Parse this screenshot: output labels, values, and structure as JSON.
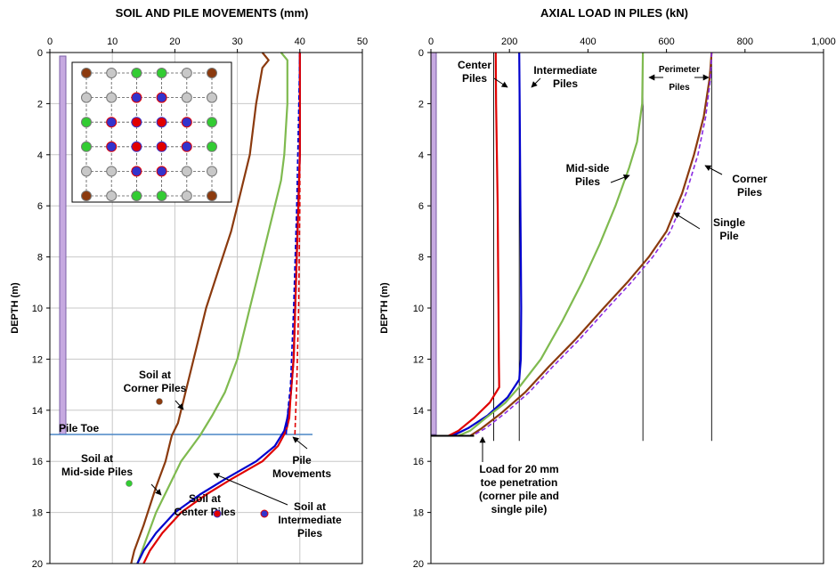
{
  "chart_data": [
    {
      "type": "line",
      "title": "SOIL AND PILE MOVEMENTS (mm)",
      "xlabel": "",
      "ylabel": "DEPTH (m)",
      "xlim": [
        0,
        50
      ],
      "ylim": [
        0,
        20
      ],
      "y_reversed": true,
      "x_axis_position": "top",
      "grid": true,
      "xticks": [
        "0",
        "10",
        "20",
        "30",
        "40",
        "50"
      ],
      "yticks": [
        "0",
        "2",
        "4",
        "6",
        "8",
        "10",
        "12",
        "14",
        "16",
        "18",
        "20"
      ],
      "series": [
        {
          "key": "soil-corner",
          "color": "#8B3A0E",
          "dashed": false,
          "points": [
            [
              34,
              0
            ],
            [
              35,
              0.3
            ],
            [
              34,
              0.6
            ],
            [
              33,
              2
            ],
            [
              32,
              4
            ],
            [
              31,
              5
            ],
            [
              30,
              6
            ],
            [
              29,
              7
            ],
            [
              27,
              8.5
            ],
            [
              25,
              10
            ],
            [
              23,
              12
            ],
            [
              21.5,
              13.5
            ],
            [
              20.5,
              14.5
            ],
            [
              19.5,
              15
            ],
            [
              18.5,
              16
            ],
            [
              17,
              17
            ],
            [
              15,
              18.5
            ],
            [
              13.5,
              19.5
            ],
            [
              13,
              20
            ]
          ]
        },
        {
          "key": "soil-midside",
          "color": "#7FBA4F",
          "dashed": false,
          "points": [
            [
              37,
              0
            ],
            [
              38,
              0.3
            ],
            [
              38,
              2
            ],
            [
              37.5,
              4
            ],
            [
              37,
              5
            ],
            [
              36,
              6
            ],
            [
              35,
              7
            ],
            [
              34,
              8
            ],
            [
              33,
              9
            ],
            [
              32,
              10
            ],
            [
              31,
              11
            ],
            [
              30,
              12
            ],
            [
              28,
              13.3
            ],
            [
              26,
              14.2
            ],
            [
              24,
              15
            ],
            [
              21,
              16
            ],
            [
              19,
              17
            ],
            [
              17,
              18
            ],
            [
              15.5,
              19
            ],
            [
              14,
              20
            ]
          ]
        },
        {
          "key": "soil-intermediate",
          "color": "#0000CD",
          "dashed": false,
          "points": [
            [
              40,
              0
            ],
            [
              40,
              4
            ],
            [
              39.5,
              8
            ],
            [
              39,
              12
            ],
            [
              38.5,
              13.5
            ],
            [
              38,
              14.3
            ],
            [
              37.5,
              14.8
            ],
            [
              36,
              15.4
            ],
            [
              33,
              16
            ],
            [
              28,
              16.7
            ],
            [
              24,
              17.3
            ],
            [
              20,
              18
            ],
            [
              17,
              18.8
            ],
            [
              15,
              19.5
            ],
            [
              14,
              20
            ]
          ]
        },
        {
          "key": "soil-center",
          "color": "#E00000",
          "dashed": false,
          "points": [
            [
              40,
              0
            ],
            [
              40,
              4
            ],
            [
              39.5,
              8
            ],
            [
              39,
              12
            ],
            [
              38.5,
              13.5
            ],
            [
              38.3,
              14.3
            ],
            [
              37.8,
              14.8
            ],
            [
              36.5,
              15.4
            ],
            [
              34,
              16
            ],
            [
              29,
              16.7
            ],
            [
              25,
              17.3
            ],
            [
              21,
              18
            ],
            [
              18,
              18.8
            ],
            [
              16,
              19.5
            ],
            [
              15,
              20
            ]
          ]
        },
        {
          "key": "pile-intermediate",
          "color": "#0000CD",
          "dashed": true,
          "points": [
            [
              40,
              0
            ],
            [
              39.5,
              6
            ],
            [
              39,
              10
            ],
            [
              38.5,
              13
            ],
            [
              38,
              14.2
            ],
            [
              37.8,
              15
            ]
          ]
        },
        {
          "key": "pile-center",
          "color": "#E00000",
          "dashed": true,
          "points": [
            [
              40,
              0
            ],
            [
              40,
              6
            ],
            [
              39.8,
              10
            ],
            [
              39.5,
              13
            ],
            [
              39.3,
              14.3
            ],
            [
              39.2,
              15
            ]
          ]
        }
      ],
      "pile_toe_depth": 15,
      "pile_toe_label": "Pile Toe",
      "annotations": [
        {
          "name": "annotation-soil-corner",
          "lines": [
            "Soil at",
            "Corner Piles"
          ]
        },
        {
          "name": "annotation-soil-midside",
          "lines": [
            "Soil at",
            "Mid-side Piles"
          ]
        },
        {
          "name": "annotation-soil-center",
          "lines": [
            "Soil at",
            "Center Piles"
          ]
        },
        {
          "name": "annotation-soil-intermediate",
          "lines": [
            "Soil at",
            "Intermediate",
            "Piles"
          ]
        },
        {
          "name": "annotation-pile-movements",
          "lines": [
            "Pile",
            "Movements"
          ]
        }
      ],
      "inset_legend": {
        "rows": [
          [
            "corner",
            "grey",
            "midside",
            "midside",
            "grey",
            "corner"
          ],
          [
            "grey",
            "grey",
            "intermediate",
            "intermediate",
            "grey",
            "grey"
          ],
          [
            "midside",
            "intermediate",
            "center",
            "center",
            "intermediate",
            "midside"
          ],
          [
            "midside",
            "intermediate",
            "center",
            "center",
            "intermediate",
            "midside"
          ],
          [
            "grey",
            "grey",
            "intermediate",
            "intermediate",
            "grey",
            "grey"
          ],
          [
            "corner",
            "grey",
            "midside",
            "midside",
            "grey",
            "corner"
          ]
        ],
        "colors": {
          "corner": "#8B3A0E",
          "grey": "#C8C8C8",
          "midside": "#33CC33",
          "intermediate": "#3333CC",
          "center": "#E00000"
        }
      }
    },
    {
      "type": "line",
      "title": "AXIAL LOAD IN PILES (kN)",
      "xlabel": "",
      "ylabel": "DEPTH (m)",
      "xlim": [
        0,
        1000
      ],
      "ylim": [
        0,
        20
      ],
      "y_reversed": true,
      "x_axis_position": "top",
      "grid": false,
      "xticks": [
        "0",
        "200",
        "400",
        "600",
        "800",
        "1,000"
      ],
      "yticks": [
        "0",
        "2",
        "4",
        "6",
        "8",
        "10",
        "12",
        "14",
        "16",
        "18",
        "20"
      ],
      "series": [
        {
          "key": "center-piles",
          "color": "#E00000",
          "dashed": false,
          "points": [
            [
              165,
              0
            ],
            [
              166,
              2
            ],
            [
              168,
              4
            ],
            [
              170,
              6
            ],
            [
              171,
              8
            ],
            [
              172,
              10
            ],
            [
              173,
              12
            ],
            [
              174,
              13.1
            ],
            [
              150,
              13.7
            ],
            [
              110,
              14.3
            ],
            [
              70,
              14.8
            ],
            [
              45,
              15
            ]
          ]
        },
        {
          "key": "intermediate-piles",
          "color": "#0000CD",
          "dashed": false,
          "points": [
            [
              225,
              0
            ],
            [
              226,
              2
            ],
            [
              227,
              4
            ],
            [
              228,
              6
            ],
            [
              229,
              8
            ],
            [
              230,
              10
            ],
            [
              229,
              12
            ],
            [
              225,
              12.8
            ],
            [
              195,
              13.5
            ],
            [
              145,
              14.2
            ],
            [
              95,
              14.7
            ],
            [
              55,
              15
            ]
          ]
        },
        {
          "key": "mid-side-piles",
          "color": "#7FBA4F",
          "dashed": false,
          "points": [
            [
              540,
              0
            ],
            [
              538,
              2
            ],
            [
              525,
              3.5
            ],
            [
              505,
              4.5
            ],
            [
              470,
              6
            ],
            [
              430,
              7.5
            ],
            [
              385,
              9
            ],
            [
              335,
              10.5
            ],
            [
              280,
              12
            ],
            [
              230,
              13
            ],
            [
              190,
              13.7
            ],
            [
              140,
              14.3
            ],
            [
              100,
              14.8
            ],
            [
              70,
              15
            ]
          ]
        },
        {
          "key": "corner-piles",
          "color": "#8B3A0E",
          "dashed": false,
          "points": [
            [
              715,
              0
            ],
            [
              710,
              1
            ],
            [
              695,
              2.5
            ],
            [
              670,
              4
            ],
            [
              640,
              5.5
            ],
            [
              600,
              7
            ],
            [
              555,
              8
            ],
            [
              500,
              9
            ],
            [
              440,
              10
            ],
            [
              370,
              11.2
            ],
            [
              300,
              12.3
            ],
            [
              240,
              13.3
            ],
            [
              180,
              14.1
            ],
            [
              130,
              14.7
            ],
            [
              100,
              15
            ]
          ]
        },
        {
          "key": "single-pile",
          "color": "#8A2BE2",
          "dashed": true,
          "points": [
            [
              715,
              0
            ],
            [
              712,
              1
            ],
            [
              700,
              2.5
            ],
            [
              680,
              4
            ],
            [
              650,
              5.5
            ],
            [
              610,
              7
            ],
            [
              565,
              8
            ],
            [
              510,
              9
            ],
            [
              450,
              10
            ],
            [
              380,
              11.2
            ],
            [
              310,
              12.3
            ],
            [
              250,
              13.3
            ],
            [
              190,
              14.1
            ],
            [
              140,
              14.7
            ],
            [
              105,
              15
            ]
          ]
        }
      ],
      "toe_load_segment": {
        "x": [
          0,
          110
        ],
        "depth": 15
      },
      "vertical_markers": [
        160,
        225,
        540,
        715
      ],
      "annotations": [
        {
          "name": "annotation-center-piles",
          "lines": [
            "Center",
            "Piles"
          ]
        },
        {
          "name": "annotation-intermediate-piles",
          "lines": [
            "Intermediate",
            "Piles"
          ]
        },
        {
          "name": "annotation-perimeter-piles",
          "lines": [
            "Perimeter",
            "Piles"
          ]
        },
        {
          "name": "annotation-mid-side-piles",
          "lines": [
            "Mid-side",
            "Piles"
          ]
        },
        {
          "name": "annotation-corner-piles",
          "lines": [
            "Corner",
            "Piles"
          ]
        },
        {
          "name": "annotation-single-pile",
          "lines": [
            "Single",
            "Pile"
          ]
        },
        {
          "name": "annotation-toe-load",
          "lines": [
            "Load for 20 mm",
            "toe penetration",
            "(corner pile and",
            "single pile)"
          ]
        }
      ]
    }
  ]
}
